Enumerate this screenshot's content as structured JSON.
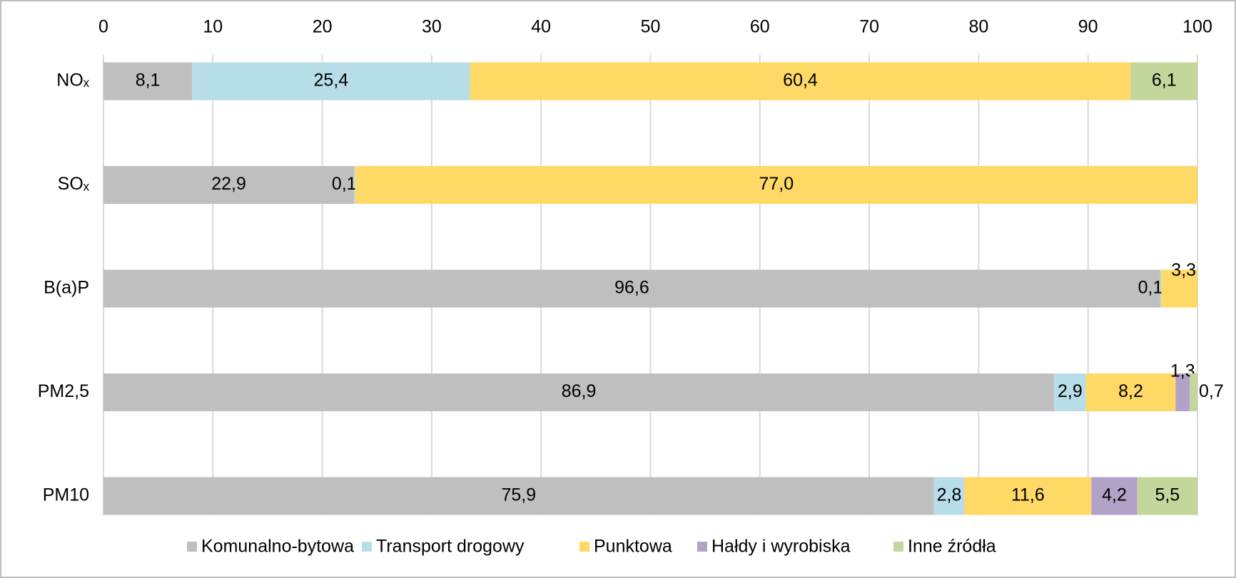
{
  "chart_data": {
    "type": "stacked-bar-horizontal",
    "categories": [
      "NOₓ",
      "SOₓ",
      "B(a)P",
      "PM2,5",
      "PM10"
    ],
    "series": [
      {
        "name": "Komunalno-bytowa",
        "color": "#bfbfbf",
        "values": [
          8.1,
          22.9,
          96.6,
          86.9,
          75.9
        ],
        "value_labels": [
          "8,1",
          "22,9",
          "96,6",
          "86,9",
          "75,9"
        ]
      },
      {
        "name": "Transport drogowy",
        "color": "#b7dde8",
        "values": [
          25.4,
          0.1,
          0.1,
          2.9,
          2.8
        ],
        "value_labels": [
          "25,4",
          "0,1",
          "0,1",
          "2,9",
          "2,8"
        ]
      },
      {
        "name": "Punktowa",
        "color": "#ffd966",
        "values": [
          60.4,
          77.0,
          3.3,
          8.2,
          11.6
        ],
        "value_labels": [
          "60,4",
          "77,0",
          "3,3",
          "8,2",
          "11,6"
        ]
      },
      {
        "name": "Hałdy i wyrobiska",
        "color": "#b3a2c7",
        "values": [
          null,
          null,
          null,
          1.3,
          4.2
        ],
        "value_labels": [
          null,
          null,
          null,
          "1,3",
          "4,2"
        ]
      },
      {
        "name": "Inne źródła",
        "color": "#c3d69b",
        "values": [
          6.1,
          null,
          null,
          0.7,
          5.5
        ],
        "value_labels": [
          "6,1",
          null,
          null,
          "0,7",
          "5,5"
        ]
      }
    ],
    "xlim": [
      0,
      100
    ],
    "xticks": [
      0,
      10,
      20,
      30,
      40,
      50,
      60,
      70,
      80,
      90,
      100
    ],
    "grid": true,
    "legend": "bottom"
  }
}
